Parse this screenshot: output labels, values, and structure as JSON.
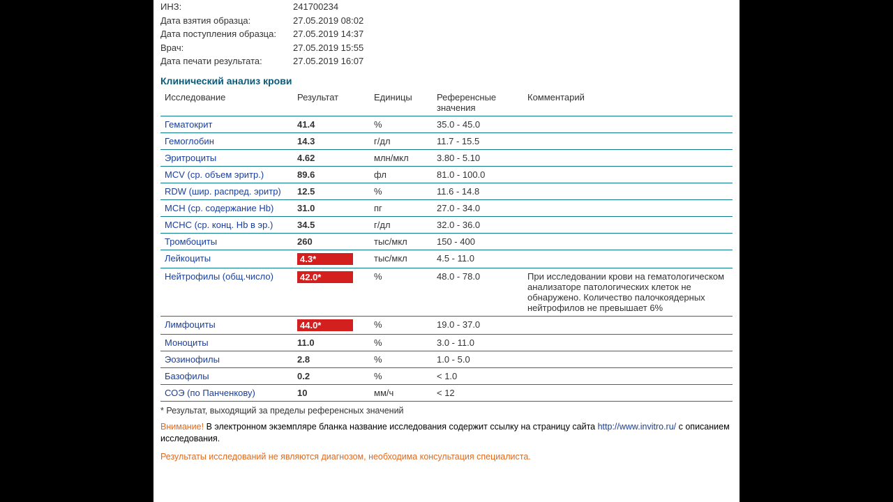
{
  "meta": {
    "rows": [
      {
        "label": "ИНЗ:",
        "value": "241700234"
      },
      {
        "label": "Дата взятия образца:",
        "value": "27.05.2019 08:02"
      },
      {
        "label": "Дата поступления образца:",
        "value": "27.05.2019 14:37"
      },
      {
        "label": "Врач:",
        "value": "27.05.2019 15:55"
      },
      {
        "label": "Дата печати результата:",
        "value": "27.05.2019 16:07"
      }
    ]
  },
  "section_title": "Клинический анализ крови",
  "columns": {
    "test": "Исследование",
    "result": "Результат",
    "units": "Единицы",
    "ref": "Референсные значения",
    "comment": "Комментарий"
  },
  "rows": [
    {
      "test": "Гематокрит",
      "result": "41.4",
      "units": "%",
      "ref": "35.0 - 45.0",
      "comment": "",
      "abnormal": false
    },
    {
      "test": "Гемоглобин",
      "result": "14.3",
      "units": "г/дл",
      "ref": "11.7 - 15.5",
      "comment": "",
      "abnormal": false
    },
    {
      "test": "Эритроциты",
      "result": "4.62",
      "units": "млн/мкл",
      "ref": "3.80 - 5.10",
      "comment": "",
      "abnormal": false
    },
    {
      "test": "MCV (ср. объем эритр.)",
      "result": "89.6",
      "units": "фл",
      "ref": "81.0 - 100.0",
      "comment": "",
      "abnormal": false
    },
    {
      "test": "RDW (шир. распред. эритр)",
      "result": "12.5",
      "units": "%",
      "ref": "11.6 - 14.8",
      "comment": "",
      "abnormal": false
    },
    {
      "test": "MCH (ср. содержание Hb)",
      "result": "31.0",
      "units": "пг",
      "ref": "27.0 - 34.0",
      "comment": "",
      "abnormal": false
    },
    {
      "test": "MCHC (ср. конц. Hb в эр.)",
      "result": "34.5",
      "units": "г/дл",
      "ref": "32.0 - 36.0",
      "comment": "",
      "abnormal": false
    },
    {
      "test": "Тромбоциты",
      "result": "260",
      "units": "тыс/мкл",
      "ref": "150 - 400",
      "comment": "",
      "abnormal": false
    },
    {
      "test": "Лейкоциты",
      "result": "4.3*",
      "units": "тыс/мкл",
      "ref": "4.5 - 11.0",
      "comment": "",
      "abnormal": true
    },
    {
      "test": "Нейтрофилы (общ.число)",
      "result": "42.0*",
      "units": "%",
      "ref": "48.0 - 78.0",
      "comment": "При исследовании крови на гематологическом анализаторе патологических клеток не обнаружено. Количество палочкоядерных нейтрофилов не превышает 6%",
      "abnormal": true
    },
    {
      "test": "Лимфоциты",
      "result": "44.0*",
      "units": "%",
      "ref": "19.0 - 37.0",
      "comment": "",
      "abnormal": true
    },
    {
      "test": "Моноциты",
      "result": "11.0",
      "units": "%",
      "ref": "3.0 - 11.0",
      "comment": "",
      "abnormal": false
    },
    {
      "test": "Эозинофилы",
      "result": "2.8",
      "units": "%",
      "ref": "1.0 - 5.0",
      "comment": "",
      "abnormal": false
    },
    {
      "test": "Базофилы",
      "result": "0.2",
      "units": "%",
      "ref": "< 1.0",
      "comment": "",
      "abnormal": false
    },
    {
      "test": "СОЭ (по Панченкову)",
      "result": "10",
      "units": "мм/ч",
      "ref": "< 12",
      "comment": "",
      "abnormal": false
    }
  ],
  "footnote": "* Результат, выходящий за пределы референсных значений",
  "warning": {
    "prefix": "Внимание!",
    "text1": " В электронном экземпляре бланка название исследования содержит ссылку на страницу сайта ",
    "link": "http://www.invitro.ru/",
    "text2": " с описанием исследования.",
    "line2": "Результаты исследований не являются диагнозом, необходима консультация специалиста."
  },
  "colors": {
    "heading": "#0b5a78",
    "border": "#0b7a8a",
    "test_link": "#1a3f9a",
    "abnormal_bg": "#d3201f",
    "warning": "#e06a1d",
    "page_bg": "#ffffff",
    "body_bg": "#000000"
  }
}
